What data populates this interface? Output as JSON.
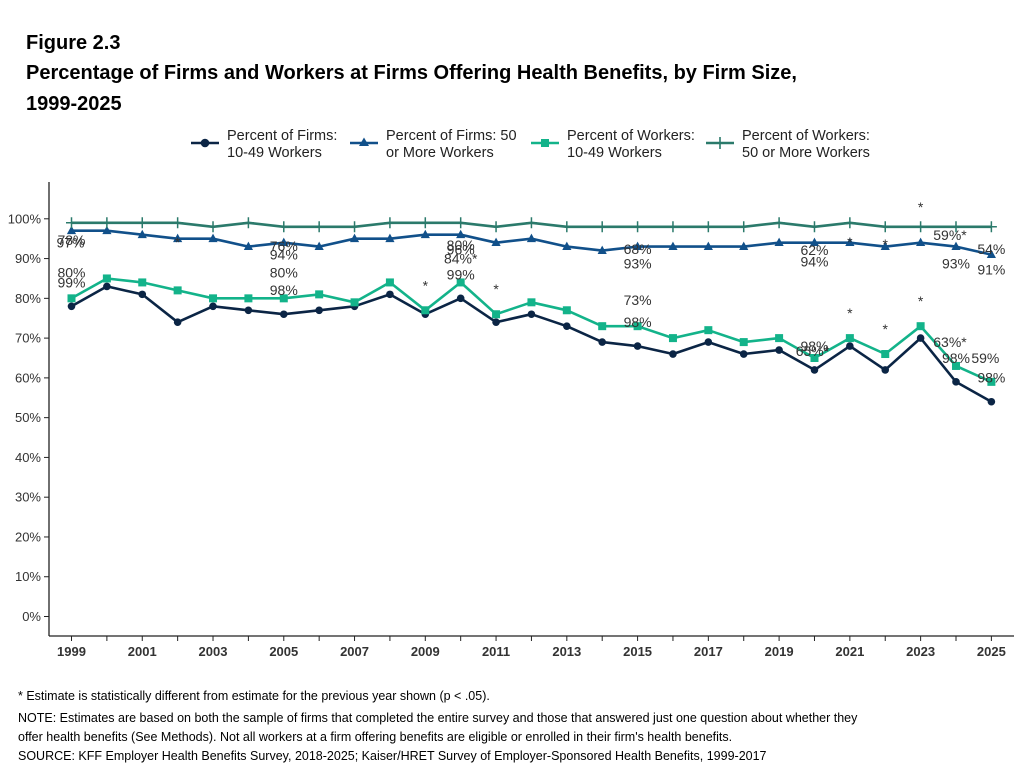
{
  "figure_label": "Figure 2.3",
  "title_line1": "Percentage of Firms and Workers at Firms Offering Health Benefits, by Firm Size,",
  "title_line2": "1999-2025",
  "legend": [
    {
      "line1": "Percent of Firms:",
      "line2": "10-49 Workers",
      "color": "#0b2545",
      "marker": "circle"
    },
    {
      "line1": "Percent of Firms: 50",
      "line2": "or More Workers",
      "color": "#11508a",
      "marker": "triangle"
    },
    {
      "line1": "Percent of Workers:",
      "line2": "10-49 Workers",
      "color": "#13b38a",
      "marker": "square"
    },
    {
      "line1": "Percent of Workers:",
      "line2": "50 or More Workers",
      "color": "#2b7a6b",
      "marker": "plus"
    }
  ],
  "footnotes": {
    "star": "* Estimate is statistically different from estimate for the previous year shown (p < .05).",
    "note1": "NOTE: Estimates are based on both the sample of firms that completed the entire survey and those that answered just one question about whether they",
    "note2": "offer health benefits (See Methods). Not all workers at a firm offering benefits are eligible or enrolled in their firm's health benefits.",
    "source": "SOURCE: KFF Employer Health Benefits Survey, 2018-2025; Kaiser/HRET Survey of Employer-Sponsored Health Benefits, 1999-2017"
  },
  "chart_data": {
    "type": "line",
    "x": [
      1999,
      2000,
      2001,
      2002,
      2003,
      2004,
      2005,
      2006,
      2007,
      2008,
      2009,
      2010,
      2011,
      2012,
      2013,
      2014,
      2015,
      2016,
      2017,
      2018,
      2019,
      2020,
      2021,
      2022,
      2023,
      2024,
      2025
    ],
    "x_tick_labels": [
      "1999",
      "2001",
      "2003",
      "2005",
      "2007",
      "2009",
      "2011",
      "2013",
      "2015",
      "2017",
      "2019",
      "2021",
      "2023",
      "2025"
    ],
    "y_tick_labels": [
      "0%",
      "10%",
      "20%",
      "30%",
      "40%",
      "50%",
      "60%",
      "70%",
      "80%",
      "90%",
      "100%"
    ],
    "ylim": [
      0,
      100
    ],
    "grid": false,
    "legend_position": "top",
    "series": [
      {
        "name": "Percent of Firms: 10-49 Workers",
        "color": "#0b2545",
        "marker": "circle",
        "values": [
          78,
          83,
          81,
          74,
          78,
          77,
          76,
          77,
          78,
          81,
          76,
          80,
          74,
          76,
          73,
          69,
          68,
          66,
          69,
          66,
          67,
          62,
          68,
          62,
          70,
          59,
          54
        ]
      },
      {
        "name": "Percent of Firms: 50 or More Workers",
        "color": "#11508a",
        "marker": "triangle",
        "values": [
          97,
          97,
          96,
          95,
          95,
          93,
          94,
          93,
          95,
          95,
          96,
          96,
          94,
          95,
          93,
          92,
          93,
          93,
          93,
          93,
          94,
          94,
          94,
          93,
          94,
          93,
          91
        ]
      },
      {
        "name": "Percent of Workers: 10-49 Workers",
        "color": "#13b38a",
        "marker": "square",
        "values": [
          80,
          85,
          84,
          82,
          80,
          80,
          80,
          81,
          79,
          84,
          77,
          84,
          76,
          79,
          77,
          73,
          73,
          70,
          72,
          69,
          70,
          65,
          70,
          66,
          73,
          63,
          59
        ]
      },
      {
        "name": "Percent of Workers: 50 or More Workers",
        "color": "#2b7a6b",
        "marker": "plus",
        "values": [
          99,
          99,
          99,
          99,
          98,
          99,
          98,
          98,
          98,
          99,
          99,
          99,
          98,
          99,
          98,
          98,
          98,
          98,
          98,
          98,
          99,
          98,
          99,
          98,
          98,
          98,
          98
        ]
      }
    ],
    "data_labels": [
      {
        "year": 1999,
        "text": "99%"
      },
      {
        "year": 2005,
        "text": "98%"
      },
      {
        "year": 2010,
        "text": "99%"
      },
      {
        "year": 2015,
        "text": "98%"
      },
      {
        "year": 2020,
        "text": "98%"
      },
      {
        "year": 2024,
        "text": "98%"
      },
      {
        "year": 2025,
        "text": "98%"
      },
      {
        "year": 1999,
        "text": "97%"
      },
      {
        "year": 2005,
        "text": "94%"
      },
      {
        "year": 2010,
        "text": "96%"
      },
      {
        "year": 2015,
        "text": "93%"
      },
      {
        "year": 2020,
        "text": "94%"
      },
      {
        "year": 2024,
        "text": "93%"
      },
      {
        "year": 2025,
        "text": "91%"
      },
      {
        "year": 1999,
        "text": "80%"
      },
      {
        "year": 2005,
        "text": "80%"
      },
      {
        "year": 2010,
        "text": "84%*"
      },
      {
        "year": 2015,
        "text": "73%"
      },
      {
        "year": 2020,
        "text": "65%*"
      },
      {
        "year": 2024,
        "text": "63%*"
      },
      {
        "year": 2025,
        "text": "59%"
      },
      {
        "year": 1999,
        "text": "78%"
      },
      {
        "year": 2005,
        "text": "76%"
      },
      {
        "year": 2010,
        "text": "80%"
      },
      {
        "year": 2015,
        "text": "68%"
      },
      {
        "year": 2020,
        "text": "62%"
      },
      {
        "year": 2024,
        "text": "59%*"
      },
      {
        "year": 2025,
        "text": "54%"
      },
      {
        "year": 2002,
        "text": "*"
      },
      {
        "year": 2009,
        "text": "*"
      },
      {
        "year": 2011,
        "text": "*"
      },
      {
        "year": 2021,
        "text": "*"
      },
      {
        "year": 2021,
        "text": "*"
      },
      {
        "year": 2022,
        "text": "*"
      },
      {
        "year": 2022,
        "text": "*"
      },
      {
        "year": 2023,
        "text": "*"
      },
      {
        "year": 2023,
        "text": "*"
      }
    ]
  }
}
